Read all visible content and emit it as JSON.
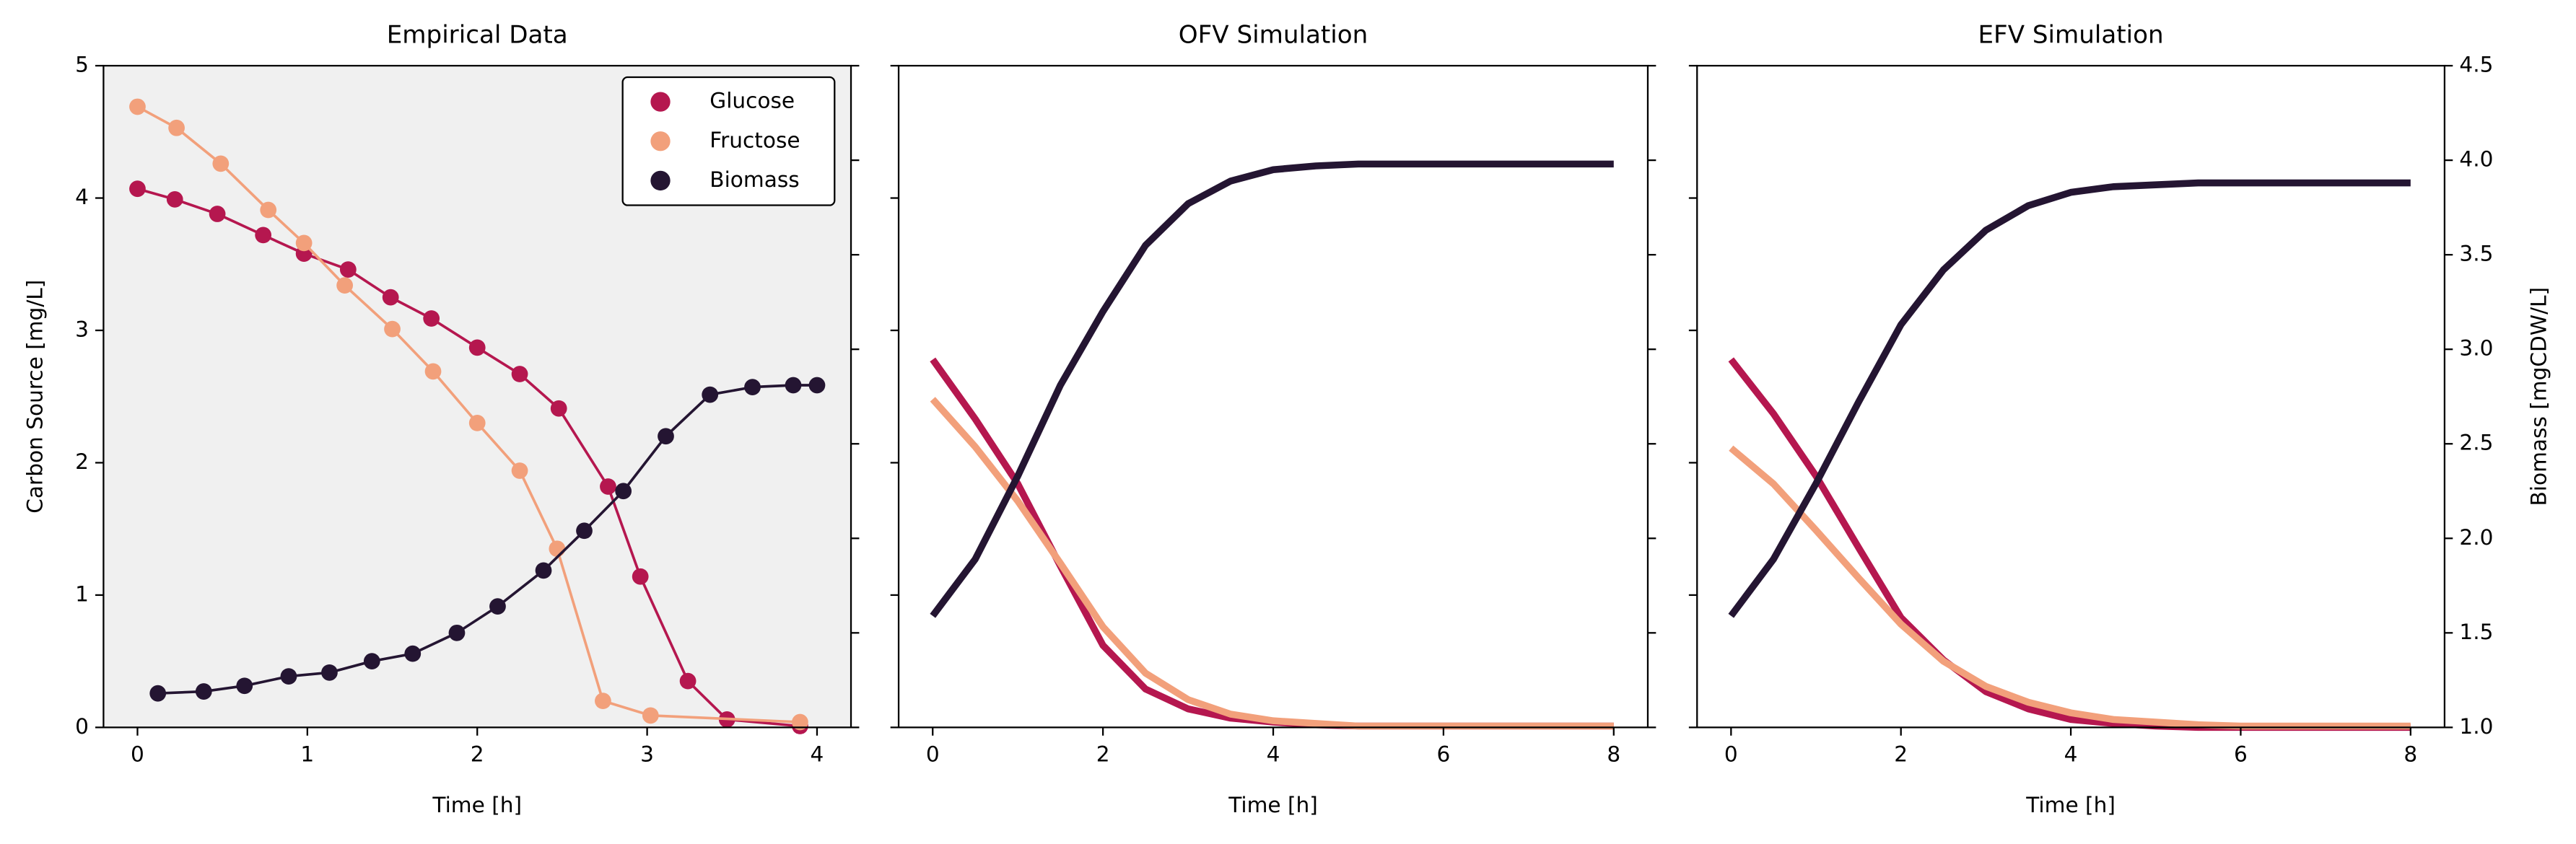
{
  "chart_data": [
    {
      "type": "line",
      "title": "Empirical Data",
      "xlabel": "Time [h]",
      "ylabel": "Carbon Source [mg/L]",
      "background": "#f0f0f0",
      "markers": true,
      "legend": "upper right",
      "xlim": [
        -0.2,
        4.2
      ],
      "xticks": [
        0,
        1,
        2,
        3,
        4
      ],
      "ylim": [
        0,
        5
      ],
      "yticks": [
        0,
        1,
        2,
        3,
        4,
        5
      ],
      "ytick_labels": true,
      "y2lim": [
        1,
        4.5
      ],
      "y2ticks": [
        1,
        1.5,
        2,
        2.5,
        3,
        3.5,
        4,
        4.5
      ],
      "y2tick_labels": false,
      "series": [
        {
          "name": "Glucose",
          "color": "#b5174f",
          "x": [
            0,
            0.22,
            0.47,
            0.74,
            0.98,
            1.24,
            1.49,
            1.73,
            2.0,
            2.25,
            2.48,
            2.77,
            2.96,
            3.24,
            3.47,
            3.9
          ],
          "values": [
            4.07,
            3.99,
            3.88,
            3.72,
            3.58,
            3.46,
            3.25,
            3.09,
            2.87,
            2.67,
            2.41,
            1.82,
            1.14,
            0.35,
            0.06,
            0.01
          ]
        },
        {
          "name": "Fructose",
          "color": "#f2a07b",
          "x": [
            0,
            0.23,
            0.49,
            0.77,
            0.98,
            1.22,
            1.5,
            1.74,
            2.0,
            2.25,
            2.47,
            2.74,
            3.02,
            3.9
          ],
          "values": [
            4.69,
            4.53,
            4.26,
            3.91,
            3.66,
            3.34,
            3.01,
            2.69,
            2.3,
            1.94,
            1.35,
            0.2,
            0.09,
            0.04
          ]
        },
        {
          "name": "Biomass",
          "color": "#241532",
          "axis": "y2",
          "x": [
            0.12,
            0.39,
            0.63,
            0.89,
            1.13,
            1.38,
            1.62,
            1.88,
            2.12,
            2.39,
            2.63,
            2.86,
            3.11,
            3.37,
            3.62,
            3.86,
            4.0
          ],
          "values": [
            1.18,
            1.19,
            1.22,
            1.27,
            1.29,
            1.35,
            1.39,
            1.5,
            1.64,
            1.83,
            2.04,
            2.25,
            2.54,
            2.76,
            2.8,
            2.81,
            2.81
          ]
        }
      ]
    },
    {
      "type": "line",
      "title": "OFV Simulation",
      "xlabel": "Time [h]",
      "markers": false,
      "xlim": [
        -0.4,
        8.4
      ],
      "xticks": [
        0,
        2,
        4,
        6,
        8
      ],
      "ylim": [
        0,
        5
      ],
      "yticks": [
        0,
        1,
        2,
        3,
        4,
        5
      ],
      "ytick_labels": false,
      "y2lim": [
        1,
        4.5
      ],
      "y2ticks": [
        1,
        1.5,
        2,
        2.5,
        3,
        3.5,
        4,
        4.5
      ],
      "y2tick_labels": false,
      "x": [
        0,
        0.5,
        1,
        1.5,
        2,
        2.5,
        3,
        3.5,
        4,
        4.5,
        5,
        5.5,
        6,
        6.5,
        7,
        7.5,
        8
      ],
      "series": [
        {
          "color": "#b5174f",
          "values": [
            2.78,
            2.33,
            1.84,
            1.22,
            0.62,
            0.29,
            0.14,
            0.07,
            0.04,
            0.02,
            0.01,
            0.01,
            0.01,
            0.01,
            0.01,
            0.01,
            0.01
          ]
        },
        {
          "color": "#f2a07b",
          "values": [
            2.48,
            2.12,
            1.71,
            1.24,
            0.76,
            0.41,
            0.21,
            0.1,
            0.05,
            0.03,
            0.01,
            0.01,
            0.01,
            0.01,
            0.01,
            0.01,
            0.01
          ]
        },
        {
          "color": "#241532",
          "axis": "y2",
          "values": [
            1.59,
            1.89,
            2.33,
            2.81,
            3.2,
            3.55,
            3.77,
            3.89,
            3.95,
            3.97,
            3.98,
            3.98,
            3.98,
            3.98,
            3.98,
            3.98,
            3.98
          ]
        }
      ]
    },
    {
      "type": "line",
      "title": "EFV Simulation",
      "xlabel": "Time [h]",
      "y2label": "Biomass [mgCDW/L]",
      "markers": false,
      "xlim": [
        -0.4,
        8.4
      ],
      "xticks": [
        0,
        2,
        4,
        6,
        8
      ],
      "ylim": [
        0,
        5
      ],
      "yticks": [
        0,
        1,
        2,
        3,
        4,
        5
      ],
      "ytick_labels": false,
      "y2lim": [
        1,
        4.5
      ],
      "y2ticks": [
        {
          "value": 1,
          "label": "1.0"
        },
        1.5,
        {
          "value": 2,
          "label": "2.0"
        },
        2.5,
        {
          "value": 3,
          "label": "3.0"
        },
        3.5,
        {
          "value": 4,
          "label": "4.0"
        },
        4.5
      ],
      "y2tick_labels": true,
      "x": [
        0,
        0.5,
        1,
        1.5,
        2,
        2.5,
        3,
        3.5,
        4,
        4.5,
        5,
        5.5,
        6,
        6.5,
        7,
        7.5,
        8
      ],
      "series": [
        {
          "color": "#b5174f",
          "values": [
            2.78,
            2.37,
            1.9,
            1.36,
            0.83,
            0.51,
            0.27,
            0.14,
            0.06,
            0.03,
            0.01,
            0,
            0,
            0,
            0,
            0,
            0
          ]
        },
        {
          "color": "#f2a07b",
          "values": [
            2.11,
            1.84,
            1.49,
            1.13,
            0.78,
            0.5,
            0.31,
            0.19,
            0.11,
            0.06,
            0.04,
            0.02,
            0.01,
            0.01,
            0.01,
            0.01,
            0.01
          ]
        },
        {
          "color": "#241532",
          "axis": "y2",
          "values": [
            1.59,
            1.89,
            2.29,
            2.72,
            3.13,
            3.42,
            3.63,
            3.76,
            3.83,
            3.86,
            3.87,
            3.88,
            3.88,
            3.88,
            3.88,
            3.88,
            3.88
          ]
        }
      ]
    }
  ]
}
